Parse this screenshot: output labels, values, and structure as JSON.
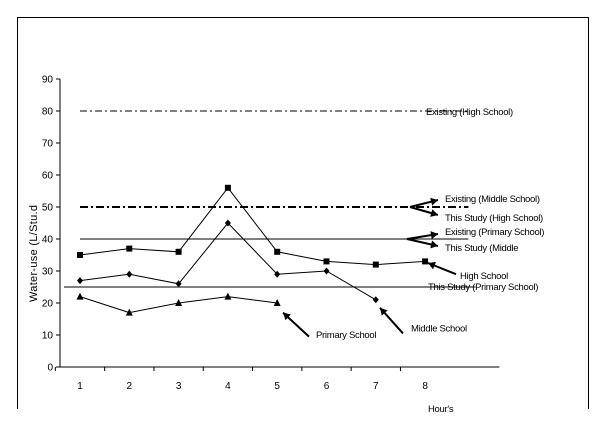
{
  "chart_data": {
    "type": "line",
    "title": "",
    "xlabel": "Hour's",
    "ylabel": "Water-use (L/Stu.d",
    "x": [
      1,
      2,
      3,
      4,
      5,
      6,
      7,
      8
    ],
    "xlim": [
      0,
      9
    ],
    "ylim": [
      0,
      90
    ],
    "yticks": [
      0,
      10,
      20,
      30,
      40,
      50,
      60,
      70,
      80,
      90
    ],
    "grid": false,
    "series": [
      {
        "name": "High School",
        "marker": "square",
        "values": [
          35,
          37,
          36,
          56,
          36,
          33,
          32,
          33
        ]
      },
      {
        "name": "Middle School",
        "marker": "diamond",
        "values": [
          27,
          29,
          26,
          45,
          29,
          30,
          21,
          null
        ]
      },
      {
        "name": "Primary School",
        "marker": "triangle",
        "values": [
          22,
          17,
          20,
          22,
          20,
          null,
          null,
          null
        ]
      }
    ],
    "reference_lines": [
      {
        "name": "Existing (High School)",
        "value": 80,
        "style": "dash-dot"
      },
      {
        "name": "Existing (Middle School)",
        "value": 50,
        "style": "dash-dot-bold"
      },
      {
        "name": "This Study (High School)",
        "value": 50,
        "style": "dash-dot-bold"
      },
      {
        "name": "Existing (Primary School)",
        "value": 40,
        "style": "solid"
      },
      {
        "name": "This Study (Middle",
        "value": 40,
        "style": "solid"
      },
      {
        "name": "This Study (Primary School)",
        "value": 25,
        "style": "solid"
      }
    ]
  }
}
